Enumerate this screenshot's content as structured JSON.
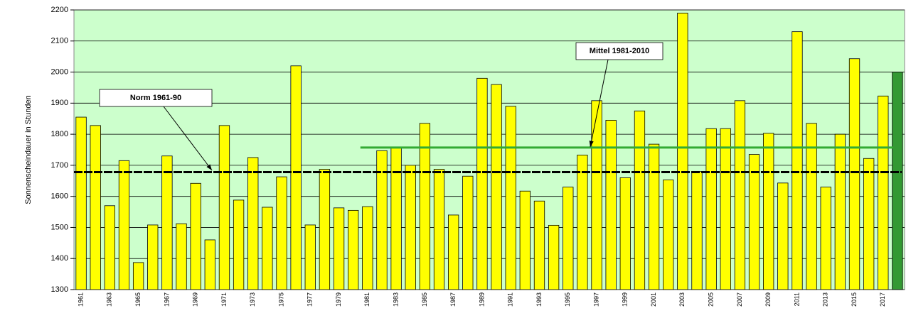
{
  "chart_data": {
    "type": "bar",
    "y_label": "Sonnenscheindauer in Stunden",
    "categories": [
      "1961",
      null,
      "1963",
      null,
      "1965",
      null,
      "1967",
      null,
      "1969",
      null,
      "1971",
      null,
      "1973",
      null,
      "1975",
      null,
      "1977",
      null,
      "1979",
      null,
      "1981",
      null,
      "1983",
      null,
      "1985",
      null,
      "1987",
      null,
      "1989",
      null,
      "1991",
      null,
      "1993",
      null,
      "1995",
      null,
      "1997",
      null,
      "1999",
      null,
      "2001",
      null,
      "2003",
      null,
      "2005",
      null,
      "2007",
      null,
      "2009",
      null,
      "2011",
      null,
      "2013",
      null,
      "2015",
      null,
      "2017",
      null
    ],
    "values": [
      1855,
      1828,
      1570,
      1715,
      1387,
      1508,
      1730,
      1512,
      1642,
      1460,
      1828,
      1588,
      1725,
      1565,
      1663,
      2020,
      1508,
      1687,
      1563,
      1555,
      1567,
      1747,
      1757,
      1700,
      1835,
      1687,
      1540,
      1665,
      1980,
      1960,
      1890,
      1617,
      1585,
      1507,
      1630,
      1733,
      1908,
      1845,
      1660,
      1875,
      1768,
      1653,
      2190,
      1680,
      1818,
      1818,
      1908,
      1735,
      1803,
      1643,
      2130,
      1835,
      1630,
      1800,
      2043,
      1722,
      1923,
      2000
    ],
    "color": "#ffff00",
    "last_color": "#339933",
    "background": "#ccffcc",
    "ylim": [
      1300,
      2200
    ],
    "yticks": [
      1300,
      1400,
      1500,
      1600,
      1700,
      1800,
      1900,
      2000,
      2100,
      2200
    ],
    "grid": true,
    "reference_lines": [
      {
        "label": "Norm 1961-90",
        "value": 1678,
        "color": "#000000"
      },
      {
        "label": "Mittel 1981-2010",
        "value": 1757,
        "color": "#33aa33"
      }
    ]
  }
}
